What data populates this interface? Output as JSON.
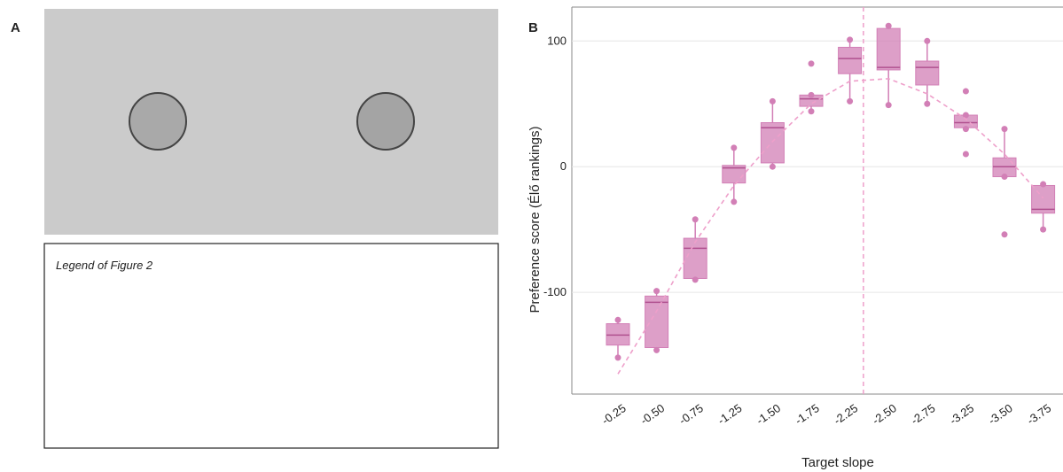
{
  "panel_a": {
    "label": "A",
    "legend": "Legend of Figure 2"
  },
  "chart_data": {
    "type": "box",
    "panel_label": "B",
    "x_label": "Target slope",
    "y_label": "Preference score (Élő rankings)",
    "categories": [
      "-0.25",
      "-0.50",
      "-0.75",
      "-1.25",
      "-1.50",
      "-1.75",
      "-2.25",
      "-2.50",
      "-2.75",
      "-3.25",
      "-3.50",
      "-3.75"
    ],
    "boxes": [
      {
        "min": -152,
        "q1": -142,
        "median": -134,
        "q3": -125,
        "max": -122,
        "outliers": []
      },
      {
        "min": -146,
        "q1": -144,
        "median": -108,
        "q3": -103,
        "max": -99,
        "outliers": []
      },
      {
        "min": -90,
        "q1": -89,
        "median": -65,
        "q3": -57,
        "max": -42,
        "outliers": []
      },
      {
        "min": -28,
        "q1": -13,
        "median": -1,
        "q3": 1,
        "max": 15,
        "outliers": []
      },
      {
        "min": 0,
        "q1": 3,
        "median": 31,
        "q3": 35,
        "max": 52,
        "outliers": []
      },
      {
        "min": 44,
        "q1": 48,
        "median": 54,
        "q3": 57,
        "max": 57,
        "outliers": [
          82
        ]
      },
      {
        "min": 52,
        "q1": 74,
        "median": 86,
        "q3": 95,
        "max": 101,
        "outliers": []
      },
      {
        "min": 49,
        "q1": 77,
        "median": 79,
        "q3": 110,
        "max": 112,
        "outliers": []
      },
      {
        "min": 50,
        "q1": 65,
        "median": 79,
        "q3": 84,
        "max": 100,
        "outliers": []
      },
      {
        "min": 30,
        "q1": 31,
        "median": 35,
        "q3": 41,
        "max": 41,
        "outliers": [
          60,
          10
        ]
      },
      {
        "min": -8,
        "q1": -8,
        "median": 0,
        "q3": 7,
        "max": 30,
        "outliers": [
          -54
        ]
      },
      {
        "min": -50,
        "q1": -37,
        "median": -34,
        "q3": -15,
        "max": -14,
        "outliers": []
      }
    ],
    "fit": [
      -165,
      -115,
      -60,
      -15,
      20,
      50,
      68,
      70,
      58,
      38,
      10,
      -25
    ],
    "vline": 6.35,
    "color": "#d27fb6",
    "ylim": [
      -181,
      127
    ],
    "yticks": [
      -100,
      0,
      100
    ],
    "grid": true
  }
}
